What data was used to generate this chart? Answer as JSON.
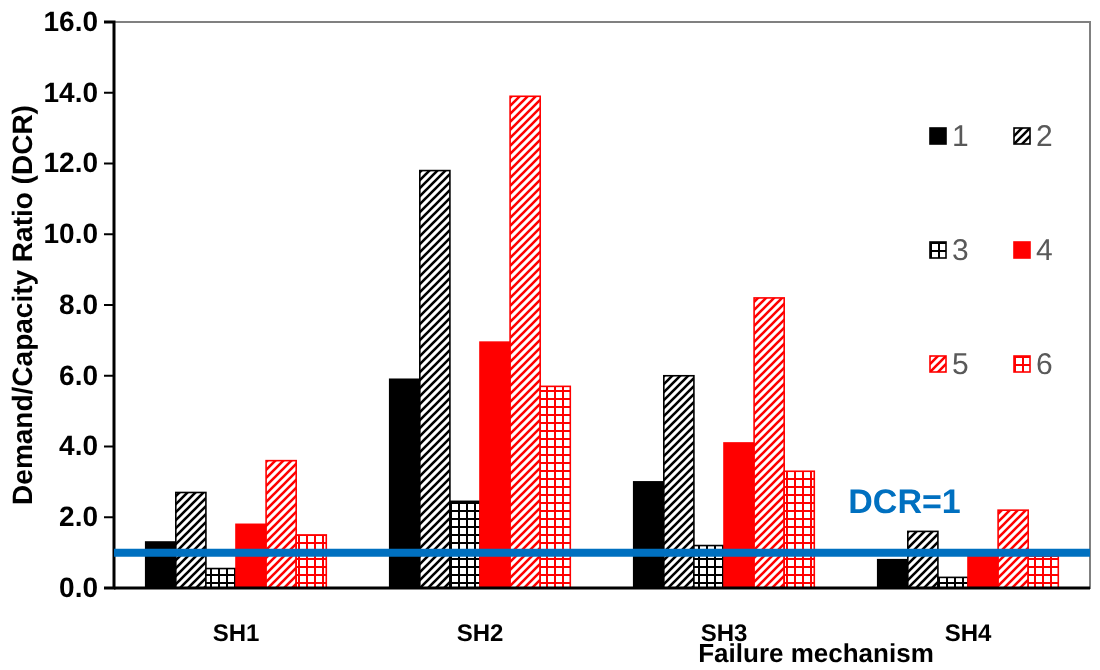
{
  "chart_data": {
    "type": "bar",
    "xlabel": "Failure mechanism",
    "ylabel": "Demand/Capacity Ratio (DCR)",
    "categories": [
      "SH1",
      "SH2",
      "SH3",
      "SH4"
    ],
    "series": [
      {
        "name": "1",
        "color": "#000000",
        "values": [
          1.3,
          5.9,
          3.0,
          0.8
        ]
      },
      {
        "name": "2",
        "color": "#000000",
        "values": [
          2.7,
          11.8,
          6.0,
          1.6
        ]
      },
      {
        "name": "3",
        "color": "#000000",
        "values": [
          0.55,
          2.45,
          1.2,
          0.3
        ]
      },
      {
        "name": "4",
        "color": "#ff0000",
        "values": [
          1.8,
          6.95,
          4.1,
          1.0
        ]
      },
      {
        "name": "5",
        "color": "#ff0000",
        "values": [
          3.6,
          13.9,
          8.2,
          2.2
        ]
      },
      {
        "name": "6",
        "color": "#ff0000",
        "values": [
          1.5,
          5.7,
          3.3,
          0.9
        ]
      }
    ],
    "ylim": [
      0,
      16
    ],
    "yticks": [
      {
        "value": 0,
        "label": "0.0"
      },
      {
        "value": 2,
        "label": "2.0"
      },
      {
        "value": 4,
        "label": "4.0"
      },
      {
        "value": 6,
        "label": "6.0"
      },
      {
        "value": 8,
        "label": "8.0"
      },
      {
        "value": 10,
        "label": "10.0"
      },
      {
        "value": 12,
        "label": "12.0"
      },
      {
        "value": 14,
        "label": "14.0"
      },
      {
        "value": 16,
        "label": "16.0"
      }
    ],
    "ref_lines": [
      {
        "axis": "y",
        "value": 1,
        "label": "DCR=1",
        "color": "#0070c0"
      }
    ],
    "grid": false,
    "legend": "right"
  }
}
